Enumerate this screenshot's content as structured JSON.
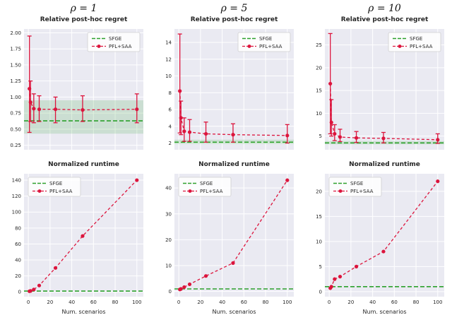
{
  "page": {
    "xlabel": "Num. scenarios"
  },
  "columns": [
    {
      "header": "ρ = 1"
    },
    {
      "header": "ρ = 5"
    },
    {
      "header": "ρ = 10"
    }
  ],
  "legend": {
    "sfge_label": "SFGE",
    "pfl_label": "PFL+SAA"
  },
  "colors": {
    "pfl": "#dc143c",
    "sfge": "#2ca02c",
    "plot_bg": "#eaeaf2",
    "grid": "#ffffff",
    "band_opacity": 0.16,
    "tick_text": "#262626",
    "legend_border": "#cccccc"
  },
  "chart_data": [
    {
      "type": "line",
      "title": "Relative post-hoc regret",
      "x": [
        1,
        2,
        5,
        10,
        25,
        50,
        100
      ],
      "pfl": {
        "y": [
          1.13,
          0.92,
          0.82,
          0.81,
          0.81,
          0.8,
          0.81
        ],
        "err_low": [
          0.45,
          0.62,
          0.6,
          0.62,
          0.6,
          0.62,
          0.6
        ],
        "err_high": [
          1.95,
          1.25,
          1.05,
          1.02,
          1.0,
          1.02,
          1.05
        ]
      },
      "sfge": {
        "y": 0.63,
        "band": [
          0.43,
          0.95
        ]
      },
      "ylim": [
        0.18,
        2.06
      ],
      "yticks": [
        0.25,
        0.5,
        0.75,
        1.0,
        1.25,
        1.5,
        1.75,
        2.0
      ],
      "ytick_labels": [
        "0.25",
        "0.50",
        "0.75",
        "1.00",
        "1.25",
        "1.50",
        "1.75",
        "2.00"
      ],
      "xlim": [
        -4,
        106
      ],
      "xticks": [
        0,
        20,
        40,
        60,
        80,
        100
      ],
      "xtick_labels": [
        "0",
        "20",
        "40",
        "60",
        "80",
        "100"
      ],
      "show_xtick_labels": false,
      "legend_pos": "tr"
    },
    {
      "type": "line",
      "title": "Relative post-hoc regret",
      "x": [
        1,
        2,
        5,
        10,
        25,
        50,
        100
      ],
      "pfl": {
        "y": [
          8.2,
          5.0,
          3.4,
          3.3,
          3.1,
          3.0,
          2.9
        ],
        "err_low": [
          3.2,
          3.0,
          2.2,
          2.2,
          2.1,
          2.1,
          2.0
        ],
        "err_high": [
          15.0,
          7.0,
          5.0,
          4.8,
          4.5,
          4.3,
          4.2
        ]
      },
      "sfge": {
        "y": 2.1,
        "band": [
          1.9,
          2.4
        ]
      },
      "ylim": [
        1.2,
        15.6
      ],
      "yticks": [
        2,
        4,
        6,
        8,
        10,
        12,
        14
      ],
      "ytick_labels": [
        "2",
        "4",
        "6",
        "8",
        "10",
        "12",
        "14"
      ],
      "xlim": [
        -4,
        106
      ],
      "xticks": [
        0,
        20,
        40,
        60,
        80,
        100
      ],
      "xtick_labels": [
        "0",
        "20",
        "40",
        "60",
        "80",
        "100"
      ],
      "show_xtick_labels": false,
      "legend_pos": "tr"
    },
    {
      "type": "line",
      "title": "Relative post-hoc regret",
      "x": [
        1,
        2,
        5,
        10,
        25,
        50,
        100
      ],
      "pfl": {
        "y": [
          16.5,
          8.0,
          5.5,
          4.8,
          4.6,
          4.5,
          4.2
        ],
        "err_low": [
          5.5,
          5.0,
          4.0,
          3.8,
          3.6,
          3.5,
          3.4
        ],
        "err_high": [
          27.5,
          13.0,
          7.5,
          6.5,
          6.0,
          5.8,
          5.5
        ]
      },
      "sfge": {
        "y": 3.5,
        "band": [
          3.2,
          3.9
        ]
      },
      "ylim": [
        2.0,
        28.5
      ],
      "yticks": [
        5,
        10,
        15,
        20,
        25
      ],
      "ytick_labels": [
        "5",
        "10",
        "15",
        "20",
        "25"
      ],
      "xlim": [
        -4,
        106
      ],
      "xticks": [
        0,
        20,
        40,
        60,
        80,
        100
      ],
      "xtick_labels": [
        "0",
        "20",
        "40",
        "60",
        "80",
        "100"
      ],
      "show_xtick_labels": false,
      "legend_pos": "tr"
    },
    {
      "type": "line",
      "title": "Normalized runtime",
      "x": [
        1,
        2,
        5,
        10,
        25,
        50,
        100
      ],
      "pfl": {
        "y": [
          0.8,
          1.2,
          3.0,
          8.0,
          30.0,
          70.0,
          140.0
        ],
        "err_low": null,
        "err_high": null
      },
      "sfge": {
        "y": 1.0,
        "band": null
      },
      "ylim": [
        -6,
        148
      ],
      "yticks": [
        0,
        20,
        40,
        60,
        80,
        100,
        120,
        140
      ],
      "ytick_labels": [
        "0",
        "20",
        "40",
        "60",
        "80",
        "100",
        "120",
        "140"
      ],
      "xlim": [
        -4,
        106
      ],
      "xticks": [
        0,
        20,
        40,
        60,
        80,
        100
      ],
      "xtick_labels": [
        "0",
        "20",
        "40",
        "60",
        "80",
        "100"
      ],
      "show_xtick_labels": true,
      "legend_pos": "tl"
    },
    {
      "type": "line",
      "title": "Normalized runtime",
      "x": [
        1,
        2,
        5,
        10,
        25,
        50,
        100
      ],
      "pfl": {
        "y": [
          0.8,
          1.0,
          1.7,
          2.8,
          6.0,
          11.0,
          43.0
        ],
        "err_low": null,
        "err_high": null
      },
      "sfge": {
        "y": 1.0,
        "band": null
      },
      "ylim": [
        -2,
        45.5
      ],
      "yticks": [
        0,
        10,
        20,
        30,
        40
      ],
      "ytick_labels": [
        "0",
        "10",
        "20",
        "30",
        "40"
      ],
      "xlim": [
        -4,
        106
      ],
      "xticks": [
        0,
        20,
        40,
        60,
        80,
        100
      ],
      "xtick_labels": [
        "0",
        "20",
        "40",
        "60",
        "80",
        "100"
      ],
      "show_xtick_labels": true,
      "legend_pos": "tl"
    },
    {
      "type": "line",
      "title": "Normalized runtime",
      "x": [
        1,
        2,
        5,
        10,
        25,
        50,
        100
      ],
      "pfl": {
        "y": [
          0.7,
          1.0,
          2.5,
          3.0,
          5.0,
          8.0,
          22.0
        ],
        "err_low": null,
        "err_high": null
      },
      "sfge": {
        "y": 1.0,
        "band": null
      },
      "ylim": [
        -1,
        23.5
      ],
      "yticks": [
        0,
        5,
        10,
        15,
        20
      ],
      "ytick_labels": [
        "0",
        "5",
        "10",
        "15",
        "20"
      ],
      "xlim": [
        -4,
        106
      ],
      "xticks": [
        0,
        20,
        40,
        60,
        80,
        100
      ],
      "xtick_labels": [
        "0",
        "20",
        "40",
        "60",
        "80",
        "100"
      ],
      "show_xtick_labels": true,
      "legend_pos": "tl"
    }
  ]
}
